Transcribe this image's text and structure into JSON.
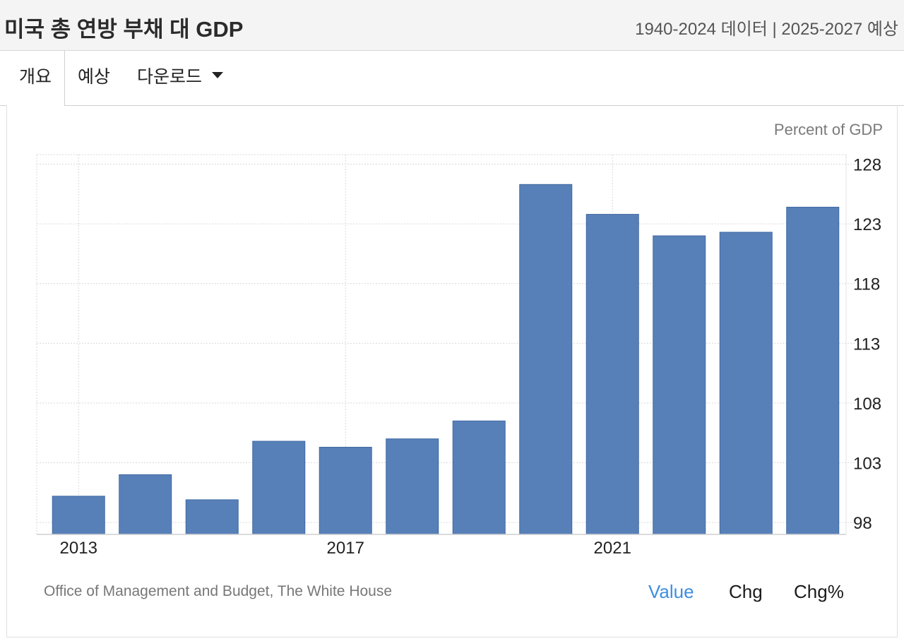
{
  "header": {
    "title": "미국 총 연방 부채 대 GDP",
    "meta": "1940-2024 데이터 | 2025-2027 예상"
  },
  "tabs": {
    "overview": "개요",
    "forecast": "예상",
    "download": "다운로드"
  },
  "colors": {
    "bar": "#5880b8",
    "bar_edge": "#3f68a3",
    "grid": "#d9d9d9",
    "active_toggle": "#3d8ee0"
  },
  "chart_data": {
    "type": "bar",
    "unit_label": "Percent of GDP",
    "categories": [
      "2013",
      "2014",
      "2015",
      "2016",
      "2017",
      "2018",
      "2019",
      "2020",
      "2021",
      "2022",
      "2023",
      "2024"
    ],
    "values": [
      100.2,
      102.0,
      99.9,
      104.8,
      104.3,
      105.0,
      106.5,
      126.3,
      123.8,
      122.0,
      122.3,
      124.4
    ],
    "x_tick_labels": [
      "2013",
      "2017",
      "2021"
    ],
    "y_ticks": [
      98,
      103,
      108,
      113,
      118,
      123,
      128
    ],
    "ylim": [
      97,
      128.8
    ],
    "grid": true
  },
  "footer": {
    "source": "Office of Management and Budget, The White House",
    "toggles": [
      "Value",
      "Chg",
      "Chg%"
    ]
  }
}
